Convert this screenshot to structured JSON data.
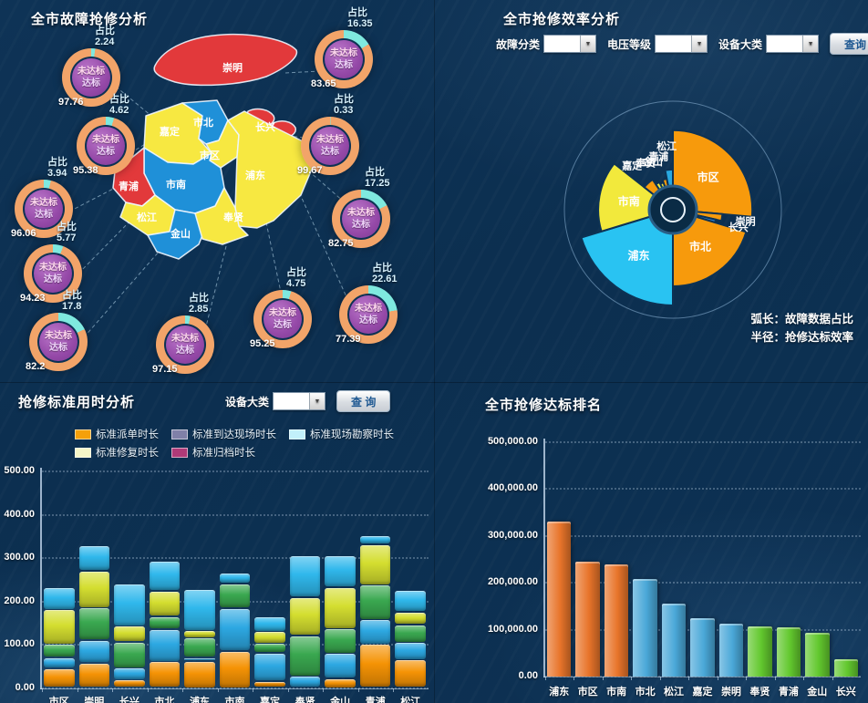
{
  "panels": {
    "fault_analysis": {
      "title": "全市故障抢修分析",
      "share_label": "占比",
      "center_top": "未达标",
      "center_bottom": "达标",
      "donuts": [
        {
          "share": 2.24,
          "share_text": "2.24",
          "rate_text": "97.76"
        },
        {
          "share": 4.62,
          "share_text": "4.62",
          "rate_text": "95.38"
        },
        {
          "share": 3.94,
          "share_text": "3.94",
          "rate_text": "96.06"
        },
        {
          "share": 5.77,
          "share_text": "5.77",
          "rate_text": "94.23"
        },
        {
          "share": 17.8,
          "share_text": "17.8",
          "rate_text": "82.2"
        },
        {
          "share": 2.85,
          "share_text": "2.85",
          "rate_text": "97.15"
        },
        {
          "share": 4.75,
          "share_text": "4.75",
          "rate_text": "95.25"
        },
        {
          "share": 22.61,
          "share_text": "22.61",
          "rate_text": "77.39"
        },
        {
          "share": 17.25,
          "share_text": "17.25",
          "rate_text": "82.75"
        },
        {
          "share": 0.33,
          "share_text": "0.33",
          "rate_text": "99.67"
        },
        {
          "share": 16.35,
          "share_text": "16.35",
          "rate_text": "83.65"
        }
      ],
      "districts": [
        "崇明",
        "长兴",
        "嘉定",
        "市北",
        "市区",
        "浦东",
        "市南",
        "青浦",
        "松江",
        "金山",
        "奉贤"
      ]
    },
    "efficiency": {
      "title": "全市抢修效率分析",
      "filters": [
        {
          "label": "故障分类",
          "value": ""
        },
        {
          "label": "电压等级",
          "value": ""
        },
        {
          "label": "设备大类",
          "value": ""
        }
      ],
      "query_label": "查询",
      "note_line1": "弧长：故障数据占比",
      "note_line2": "半径：抢修达标效率"
    },
    "standard_time": {
      "title": "抢修标准用时分析",
      "filter_label": "设备大类",
      "filter_value": "",
      "query_label": "查 询"
    },
    "ranking": {
      "title": "全市抢修达标排名"
    }
  },
  "chart_data": [
    {
      "type": "pie",
      "variant": "nightingale-rose",
      "title": "全市抢修效率分析",
      "note": [
        "弧长：故障数据占比",
        "半径：抢修达标效率"
      ],
      "segments": [
        {
          "name": "市区",
          "share_pct": 26.4,
          "radius_pct": 83,
          "color": "#f79a0c"
        },
        {
          "name": "崇明",
          "share_pct": 2.2,
          "radius_pct": 52,
          "color": "#f79a0c"
        },
        {
          "name": "长兴",
          "share_pct": 1.1,
          "radius_pct": 46,
          "color": "#2a7fd4"
        },
        {
          "name": "市北",
          "share_pct": 20.3,
          "radius_pct": 80,
          "color": "#f79a0c"
        },
        {
          "name": "浦东",
          "share_pct": 20.3,
          "radius_pct": 100,
          "color": "#29c3f2"
        },
        {
          "name": "市南",
          "share_pct": 15.3,
          "radius_pct": 78,
          "color": "#f2e93c"
        },
        {
          "name": "嘉定",
          "share_pct": 5.0,
          "radius_pct": 38,
          "color": "#f79a0c"
        },
        {
          "name": "奉贤",
          "share_pct": 2.2,
          "radius_pct": 32,
          "color": "#f2e93c"
        },
        {
          "name": "金山",
          "share_pct": 1.9,
          "radius_pct": 30,
          "color": "#f2e93c"
        },
        {
          "name": "青浦",
          "share_pct": 2.2,
          "radius_pct": 33,
          "color": "#f79a0c"
        },
        {
          "name": "松江",
          "share_pct": 3.1,
          "radius_pct": 42,
          "color": "#29a8e0"
        }
      ]
    },
    {
      "type": "bar",
      "stacked": true,
      "title": "抢修标准用时分析",
      "categories": [
        "市区",
        "崇明",
        "长兴",
        "市北",
        "浦东",
        "市南",
        "嘉定",
        "奉贤",
        "金山",
        "青浦",
        "松江"
      ],
      "series": [
        {
          "name": "标准派单时长",
          "legend_color": "#f5a00a",
          "bar_color": "#f59305",
          "values": [
            45,
            57,
            18,
            60,
            62,
            85,
            15,
            0,
            22,
            100,
            65
          ]
        },
        {
          "name": "标准到达现场时长",
          "legend_color": "#8080a8",
          "bar_color": "#2da8e2",
          "values": [
            25,
            53,
            28,
            75,
            8,
            98,
            65,
            27,
            57,
            57,
            40
          ]
        },
        {
          "name": "标准现场勘察时长",
          "legend_color": "#c2f0fa",
          "bar_color": "#3aa850",
          "values": [
            30,
            75,
            60,
            30,
            45,
            57,
            22,
            93,
            57,
            80,
            40
          ]
        },
        {
          "name": "标准修复时长",
          "legend_color": "#f6f6c8",
          "bar_color": "#d4de30",
          "values": [
            80,
            85,
            36,
            58,
            17,
            0,
            28,
            88,
            96,
            93,
            30
          ]
        },
        {
          "name": "标准归档时长",
          "legend_color": "#b03a78",
          "bar_color": "#30b8ec",
          "values": [
            52,
            57,
            98,
            70,
            96,
            25,
            35,
            97,
            73,
            20,
            50
          ]
        }
      ],
      "ylim": [
        0,
        500
      ],
      "yticks": [
        "0.00",
        "100.00",
        "200.00",
        "300.00",
        "400.00",
        "500.00"
      ]
    },
    {
      "type": "bar",
      "title": "全市抢修达标排名",
      "categories": [
        "浦东",
        "市区",
        "市南",
        "市北",
        "松江",
        "嘉定",
        "崇明",
        "奉贤",
        "青浦",
        "金山",
        "长兴"
      ],
      "values": [
        330000,
        245000,
        240000,
        208000,
        155000,
        125000,
        112000,
        107000,
        105000,
        93000,
        38000
      ],
      "bar_colors": [
        "#e8742a",
        "#e8742a",
        "#e8742a",
        "#4aa8d8",
        "#4aa8d8",
        "#4aa8d8",
        "#4aa8d8",
        "#62c82e",
        "#62c82e",
        "#62c82e",
        "#62c82e"
      ],
      "ylim": [
        0,
        500000
      ],
      "yticks": [
        "0.00",
        "100,000.00",
        "200,000.00",
        "300,000.00",
        "400,000.00",
        "500,000.00"
      ]
    }
  ]
}
